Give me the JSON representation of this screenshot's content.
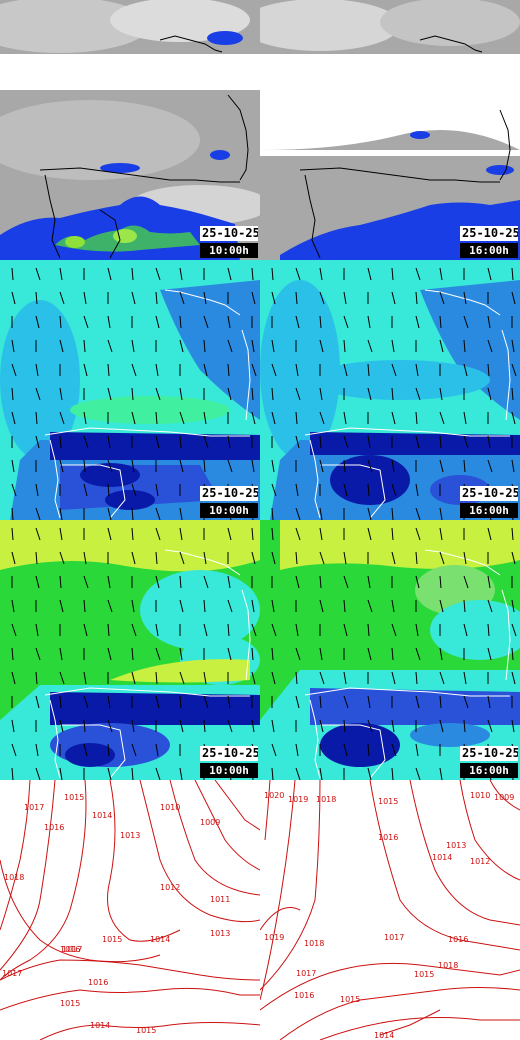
{
  "panels": {
    "cloud_10": {
      "date": "25-10-25",
      "time": "10:00h"
    },
    "cloud_16": {
      "date": "25-10-25",
      "time": "16:00h"
    },
    "wind_low_10": {
      "date": "25-10-25",
      "time": "10:00h"
    },
    "wind_low_16": {
      "date": "25-10-25",
      "time": "16:00h"
    },
    "wind_high_10": {
      "date": "25-10-25",
      "time": "10:00h"
    },
    "wind_high_16": {
      "date": "25-10-25",
      "time": "16:00h"
    }
  },
  "pressure": {
    "left_labels": [
      "1017",
      "1016",
      "1015",
      "1014",
      "1013",
      "1012",
      "1011",
      "1010",
      "1009",
      "1018",
      "1017",
      "1016",
      "1015",
      "1014",
      "1013",
      "1015",
      "1016",
      "1017",
      "1014",
      "1015"
    ],
    "right_labels": [
      "1020",
      "1019",
      "1018",
      "1015",
      "1016",
      "1014",
      "1013",
      "1012",
      "1010",
      "1009",
      "1019",
      "1018",
      "1017",
      "1016",
      "1015",
      "1016",
      "1017",
      "1018",
      "1014",
      "1015"
    ]
  },
  "colors": {
    "cloud_grey": "#a8a8a8",
    "precip_blue": "#1a3ee6",
    "precip_green": "#6ad63a",
    "sea_cyan": "#38e8d8",
    "deep_blue": "#0a1aa8",
    "mid_blue": "#2a8ae0",
    "green": "#2ad83a",
    "yellow_green": "#c8f040",
    "isobar_red": "#cc1010"
  }
}
